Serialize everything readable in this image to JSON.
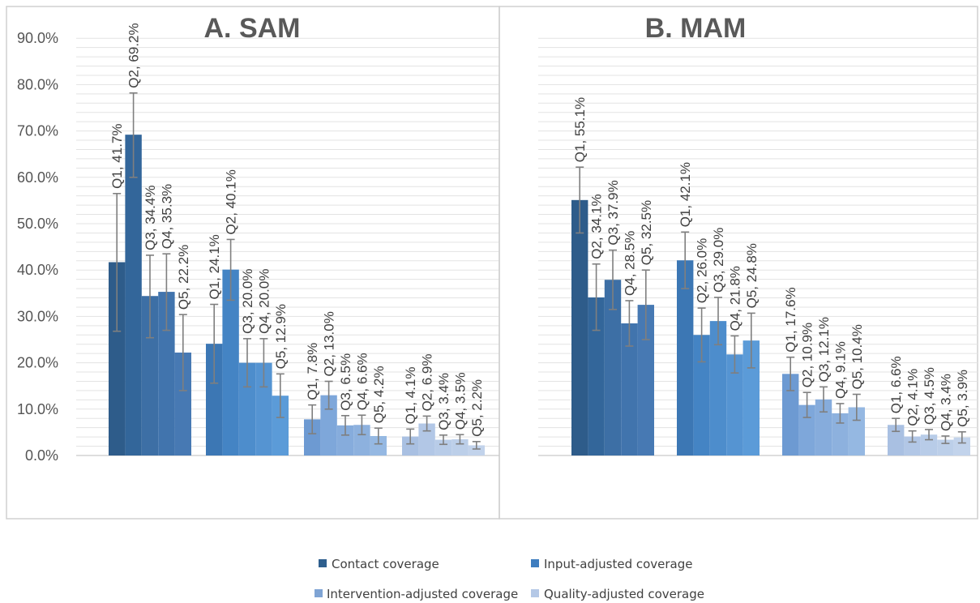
{
  "chart_data": [
    {
      "type": "bar",
      "title": "A. SAM",
      "ylim": [
        0,
        90
      ],
      "y_ticks": [
        "0.0%",
        "10.0%",
        "20.0%",
        "30.0%",
        "40.0%",
        "50.0%",
        "60.0%",
        "70.0%",
        "80.0%",
        "90.0%"
      ],
      "y_tick_values": [
        0,
        10,
        20,
        30,
        40,
        50,
        60,
        70,
        80,
        90
      ],
      "quintiles": [
        "Q1",
        "Q2",
        "Q3",
        "Q4",
        "Q5"
      ],
      "series": [
        {
          "name": "Contact coverage",
          "values": [
            41.7,
            69.2,
            34.4,
            35.3,
            22.2
          ],
          "lower": [
            26.8,
            60.0,
            25.4,
            27.0,
            14.0
          ],
          "upper": [
            56.5,
            78.2,
            43.2,
            43.5,
            30.4
          ],
          "labels": [
            "Q1, 41.7%",
            "Q2, 69.2%",
            "Q3, 34.4%",
            "Q4, 35.3%",
            "Q5, 22.2%"
          ]
        },
        {
          "name": "Input-adjusted coverage",
          "values": [
            24.1,
            40.1,
            20.0,
            20.0,
            12.9
          ],
          "lower": [
            15.6,
            33.5,
            14.8,
            14.8,
            8.2
          ],
          "upper": [
            32.6,
            46.6,
            25.2,
            25.2,
            17.6
          ],
          "labels": [
            "Q1, 24.1%",
            "Q2, 40.1%",
            "Q3, 20.0%",
            "Q4, 20.0%",
            "Q5, 12.9%"
          ]
        },
        {
          "name": "Intervention-adjusted coverage",
          "values": [
            7.8,
            13.0,
            6.5,
            6.6,
            4.2
          ],
          "lower": [
            4.7,
            10.0,
            4.4,
            4.5,
            2.5
          ],
          "upper": [
            10.9,
            16.0,
            8.6,
            8.7,
            5.9
          ],
          "labels": [
            "Q1, 7.8%",
            "Q2, 13.0%",
            "Q3, 6.5%",
            "Q4, 6.6%",
            "Q5, 4.2%"
          ]
        },
        {
          "name": "Quality-adjusted coverage",
          "values": [
            4.1,
            6.9,
            3.4,
            3.5,
            2.2
          ],
          "lower": [
            2.5,
            5.3,
            2.4,
            2.5,
            1.4
          ],
          "upper": [
            5.7,
            8.5,
            4.4,
            4.5,
            3.0
          ],
          "labels": [
            "Q1, 4.1%",
            "Q2, 6.9%",
            "Q3, 3.4%",
            "Q4, 3.5%",
            "Q5, 2.2%"
          ]
        }
      ]
    },
    {
      "type": "bar",
      "title": "B. MAM",
      "ylim": [
        0,
        90
      ],
      "quintiles": [
        "Q1",
        "Q2",
        "Q3",
        "Q4",
        "Q5"
      ],
      "series": [
        {
          "name": "Contact coverage",
          "values": [
            55.1,
            34.1,
            37.9,
            28.5,
            32.5
          ],
          "lower": [
            48.0,
            27.0,
            31.5,
            23.6,
            25.0
          ],
          "upper": [
            62.2,
            41.3,
            44.3,
            33.4,
            40.0
          ],
          "labels": [
            "Q1, 55.1%",
            "Q2, 34.1%",
            "Q3, 37.9%",
            "Q4, 28.5%",
            "Q5, 32.5%"
          ]
        },
        {
          "name": "Input-adjusted coverage",
          "values": [
            42.1,
            26.0,
            29.0,
            21.8,
            24.8
          ],
          "lower": [
            36.0,
            20.2,
            23.9,
            17.8,
            18.9
          ],
          "upper": [
            48.2,
            31.8,
            34.1,
            25.8,
            30.7
          ],
          "labels": [
            "Q1, 42.1%",
            "Q2, 26.0%",
            "Q3, 29.0%",
            "Q4, 21.8%",
            "Q5, 24.8%"
          ]
        },
        {
          "name": "Intervention-adjusted coverage",
          "values": [
            17.6,
            10.9,
            12.1,
            9.1,
            10.4
          ],
          "lower": [
            14.0,
            8.2,
            9.4,
            7.0,
            7.6
          ],
          "upper": [
            21.2,
            13.6,
            14.8,
            11.2,
            13.2
          ],
          "labels": [
            "Q1, 17.6%",
            "Q2, 10.9%",
            "Q3, 12.1%",
            "Q4, 9.1%",
            "Q5, 10.4%"
          ]
        },
        {
          "name": "Quality-adjusted coverage",
          "values": [
            6.6,
            4.1,
            4.5,
            3.4,
            3.9
          ],
          "lower": [
            5.2,
            2.9,
            3.4,
            2.6,
            2.7
          ],
          "upper": [
            8.0,
            5.3,
            5.6,
            4.2,
            5.1
          ],
          "labels": [
            "Q1, 6.6%",
            "Q2, 4.1%",
            "Q3, 4.5%",
            "Q4, 3.4%",
            "Q5, 3.9%"
          ]
        }
      ]
    }
  ],
  "legend": {
    "items": [
      {
        "label": "Contact coverage",
        "color": "#2e5f8e"
      },
      {
        "label": "Input-adjusted coverage",
        "color": "#3e7dbf"
      },
      {
        "label": "Intervention-adjusted coverage",
        "color": "#7fa4d4"
      },
      {
        "label": "Quality-adjusted coverage",
        "color": "#b4c8e6"
      }
    ]
  },
  "palette": {
    "group_colors": [
      [
        "#2e5c8a",
        "#33669a",
        "#3d6fa5",
        "#4174ad",
        "#4779b3"
      ],
      [
        "#3c77b4",
        "#4484c4",
        "#4d8dcc",
        "#5594d2",
        "#5b9bd8"
      ],
      [
        "#6d9ad2",
        "#7ea7da",
        "#86acdc",
        "#8db1de",
        "#95b8e2"
      ],
      [
        "#a9c0e2",
        "#b2c7e6",
        "#b8cce8",
        "#bccfe9",
        "#c2d3eb"
      ]
    ]
  }
}
